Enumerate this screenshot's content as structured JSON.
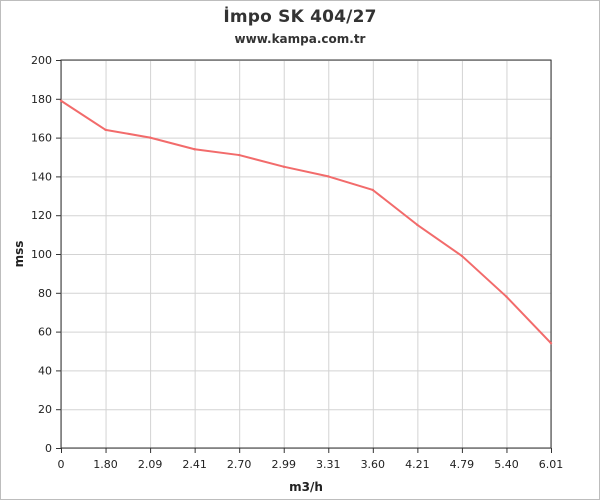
{
  "colors": {
    "series": "#f26b6b",
    "grid": "#d3d3d3",
    "axis": "#333333",
    "text": "#222222"
  },
  "chart_data": {
    "type": "line",
    "title": "İmpo SK 404/27",
    "subtitle": "www.kampa.com.tr",
    "xlabel": "m3/h",
    "ylabel": "mss",
    "categories": [
      "0",
      "1.80",
      "2.09",
      "2.41",
      "2.70",
      "2.99",
      "3.31",
      "3.60",
      "4.21",
      "4.79",
      "5.40",
      "6.01"
    ],
    "series": [
      {
        "values": [
          179,
          164,
          160,
          154,
          151,
          145,
          140,
          133,
          115,
          99,
          78,
          54
        ]
      }
    ],
    "ylim": [
      0,
      200
    ],
    "yticks": [
      0,
      20,
      40,
      60,
      80,
      100,
      120,
      140,
      160,
      180,
      200
    ],
    "grid": true,
    "legend": "none"
  }
}
